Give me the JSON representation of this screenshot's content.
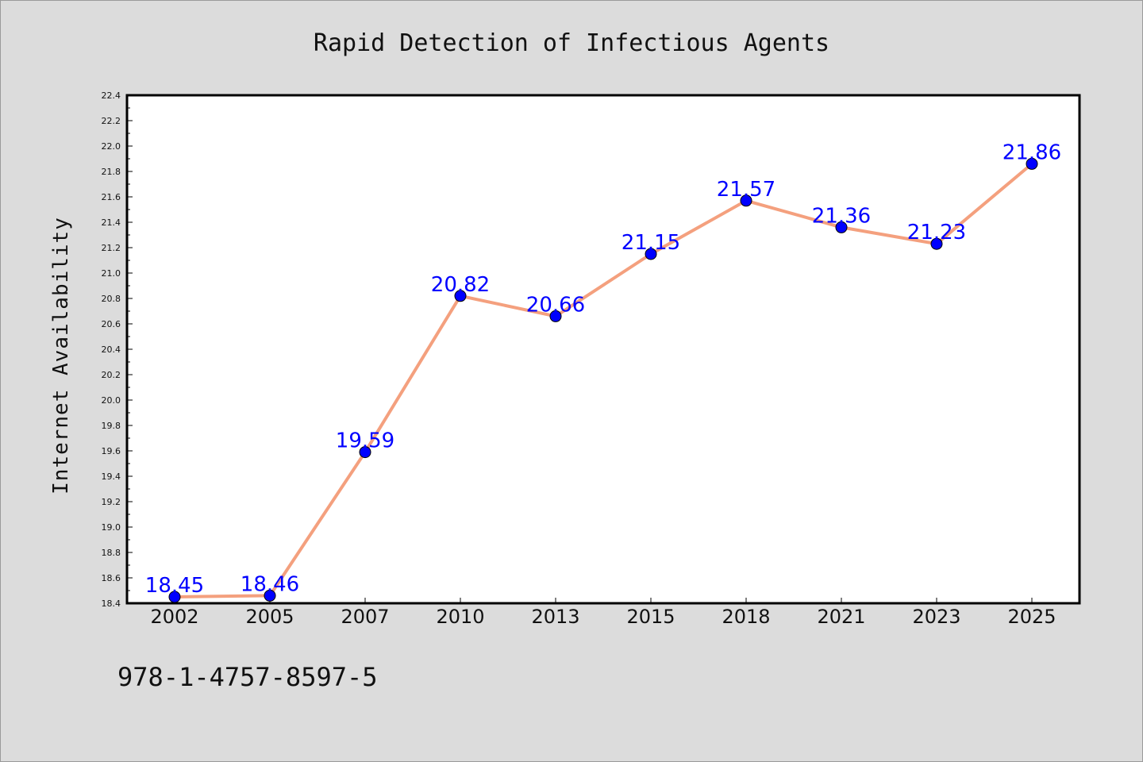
{
  "chart_data": {
    "type": "line",
    "title": "Rapid Detection of Infectious Agents",
    "ylabel": "Internet Availability",
    "xlabel": "",
    "categories": [
      "2002",
      "2005",
      "2007",
      "2010",
      "2013",
      "2015",
      "2018",
      "2021",
      "2023",
      "2025"
    ],
    "values": [
      18.45,
      18.46,
      19.59,
      20.82,
      20.66,
      21.15,
      21.57,
      21.36,
      21.23,
      21.86
    ],
    "data_labels": [
      "18.45",
      "18.46",
      "19.59",
      "20.82",
      "20.66",
      "21.15",
      "21.57",
      "21.36",
      "21.23",
      "21.86"
    ],
    "ylim": [
      18.4,
      22.4
    ],
    "yticks": [
      "18.4",
      "18.6",
      "18.8",
      "19.0",
      "19.2",
      "19.4",
      "19.6",
      "19.8",
      "20.0",
      "20.2",
      "20.4",
      "20.6",
      "20.8",
      "21.0",
      "21.2",
      "21.4",
      "21.6",
      "21.8",
      "22.0",
      "22.2",
      "22.4"
    ],
    "grid": false,
    "line_color": "#f4a07e",
    "marker_color": "#0000ff",
    "label_color": "#0000ff"
  },
  "footer": {
    "isbn": "978-1-4757-8597-5"
  }
}
